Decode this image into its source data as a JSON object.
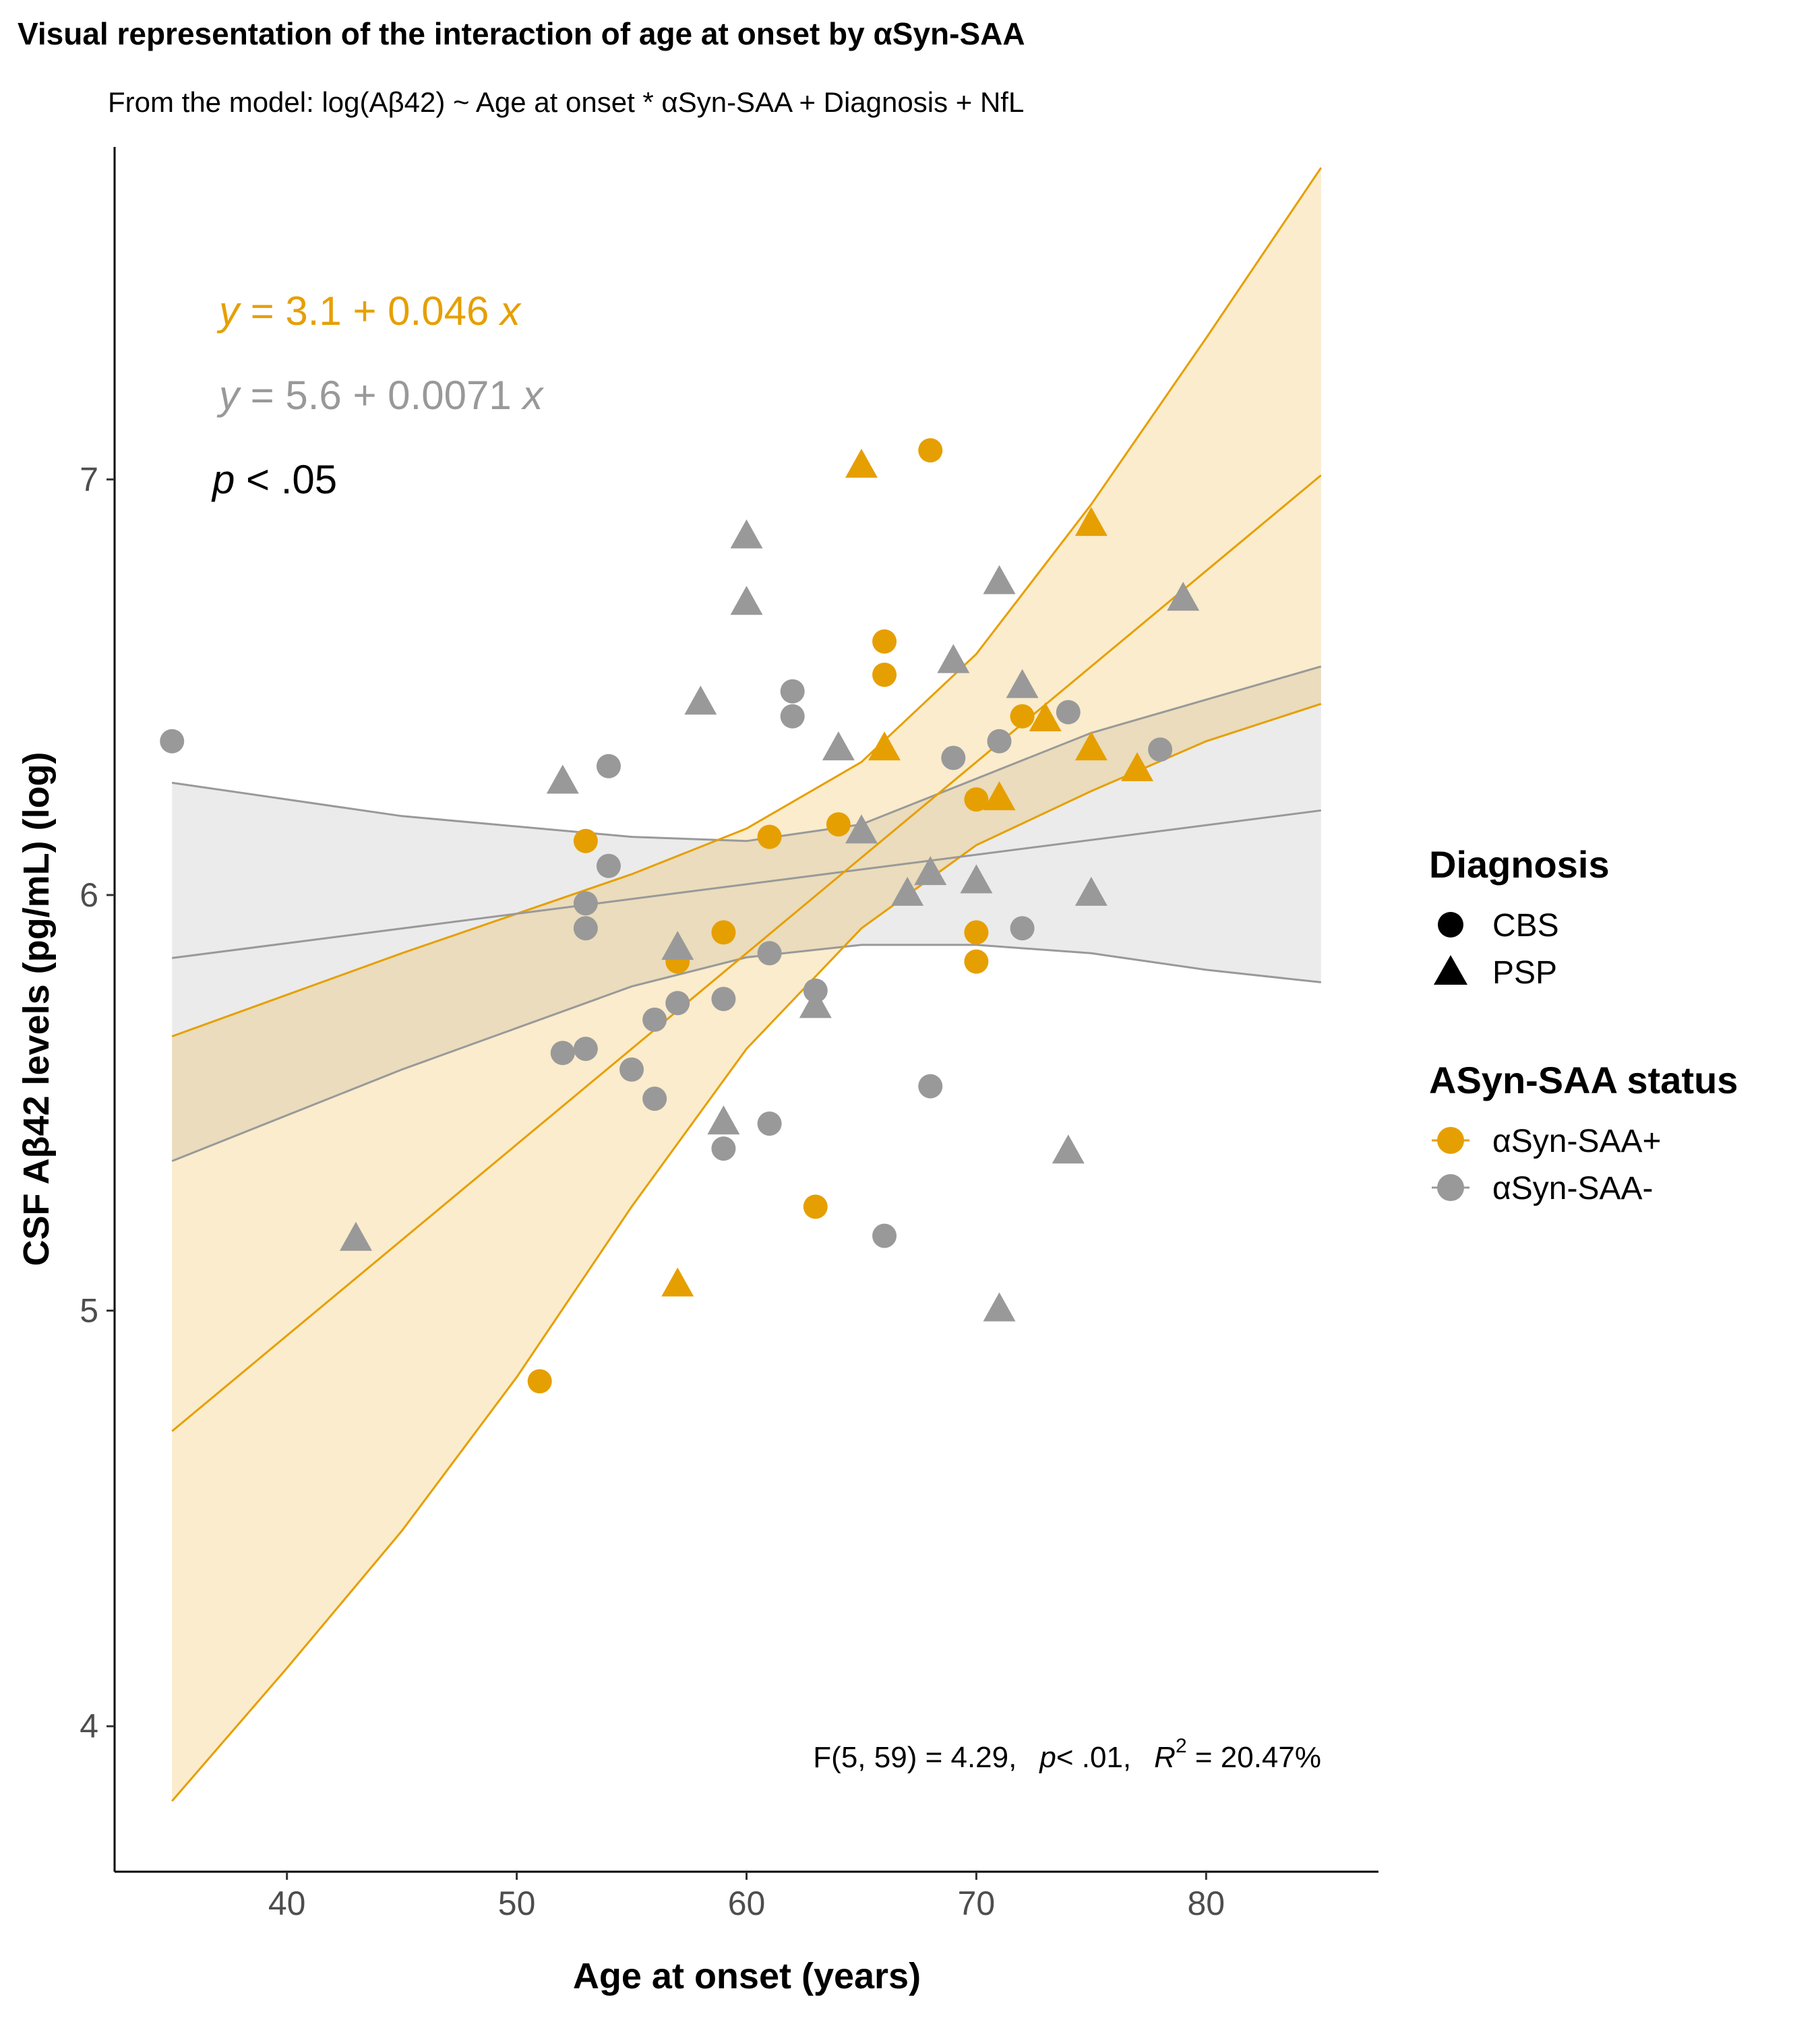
{
  "title": "Visual representation of the interaction of age at onset by αSyn-SAA",
  "subtitle": "From the model: log(Aβ42) ~ Age at onset * αSyn-SAA + Diagnosis + NfL",
  "annotations": {
    "eq_pos_y": "y",
    "eq_pos_rest": " = 3.1 + 0.046 ",
    "eq_pos_x": "x",
    "eq_neg_y": "y",
    "eq_neg_rest": " = 5.6 + 0.0071 ",
    "eq_neg_x": "x",
    "p_symbol": "p",
    "p_rest": " < .05",
    "stats_f": "F(5, 59) = 4.29,",
    "stats_p": "p",
    "stats_p_rest": "< .01,",
    "stats_r": "R",
    "stats_r_sup": "2",
    "stats_r_rest": " = 20.47%"
  },
  "legend": {
    "diagnosis_title": "Diagnosis",
    "diagnosis_items": [
      "CBS",
      "PSP"
    ],
    "status_title": "ASyn-SAA status",
    "status_items": [
      "αSyn-SAA+",
      "αSyn-SAA-"
    ]
  },
  "colors": {
    "positive": "#E69F00",
    "positive_band": "#FBEBCB",
    "negative": "#999999",
    "negative_band": "#EBEBEB",
    "overlap_band": "#E6DBC0",
    "axis": "#000000"
  },
  "chart_data": {
    "type": "scatter",
    "title": "Visual representation of the interaction of age at onset by αSyn-SAA",
    "xlabel": "Age at onset (years)",
    "ylabel": "CSF Aβ42 levels (pg/mL) (log)",
    "xlim": [
      32.5,
      87.5
    ],
    "ylim": [
      3.65,
      7.8
    ],
    "x_ticks": [
      40,
      50,
      60,
      70,
      80
    ],
    "y_ticks": [
      4,
      5,
      6,
      7
    ],
    "grid": false,
    "legend_position": "right",
    "fit_lines": [
      {
        "name": "αSyn-SAA+",
        "intercept": 3.1,
        "slope": 0.046,
        "x_range": [
          35,
          85
        ],
        "upper": [
          [
            35,
            5.66
          ],
          [
            45,
            5.86
          ],
          [
            55,
            6.05
          ],
          [
            60,
            6.16
          ],
          [
            65,
            6.32
          ],
          [
            70,
            6.58
          ],
          [
            75,
            6.94
          ],
          [
            80,
            7.34
          ],
          [
            85,
            7.75
          ]
        ],
        "lower": [
          [
            35,
            3.82
          ],
          [
            40,
            4.14
          ],
          [
            45,
            4.47
          ],
          [
            50,
            4.84
          ],
          [
            55,
            5.25
          ],
          [
            60,
            5.63
          ],
          [
            65,
            5.92
          ],
          [
            70,
            6.12
          ],
          [
            75,
            6.25
          ],
          [
            80,
            6.37
          ],
          [
            85,
            6.46
          ]
        ]
      },
      {
        "name": "αSyn-SAA-",
        "intercept": 5.6,
        "slope": 0.0071,
        "x_range": [
          35,
          85
        ],
        "upper": [
          [
            35,
            6.27
          ],
          [
            45,
            6.19
          ],
          [
            55,
            6.14
          ],
          [
            60,
            6.13
          ],
          [
            65,
            6.17
          ],
          [
            70,
            6.28
          ],
          [
            75,
            6.39
          ],
          [
            80,
            6.47
          ],
          [
            85,
            6.55
          ]
        ],
        "lower": [
          [
            35,
            5.36
          ],
          [
            45,
            5.58
          ],
          [
            55,
            5.78
          ],
          [
            60,
            5.85
          ],
          [
            65,
            5.88
          ],
          [
            70,
            5.88
          ],
          [
            75,
            5.86
          ],
          [
            80,
            5.82
          ],
          [
            85,
            5.79
          ]
        ]
      }
    ],
    "series": [
      {
        "name": "αSyn-SAA+ CBS",
        "status": "positive",
        "shape": "circle",
        "points": [
          [
            68,
            7.07
          ],
          [
            66,
            6.61
          ],
          [
            66,
            6.53
          ],
          [
            72,
            6.43
          ],
          [
            64,
            6.17
          ],
          [
            70,
            6.23
          ],
          [
            53,
            6.13
          ],
          [
            61,
            6.14
          ],
          [
            59,
            5.91
          ],
          [
            70,
            5.91
          ],
          [
            70,
            5.84
          ],
          [
            57,
            5.84
          ],
          [
            63,
            5.25
          ],
          [
            51,
            4.83
          ]
        ]
      },
      {
        "name": "αSyn-SAA+ PSP",
        "status": "positive",
        "shape": "triangle",
        "points": [
          [
            65,
            7.03
          ],
          [
            75,
            6.89
          ],
          [
            66,
            6.35
          ],
          [
            73,
            6.42
          ],
          [
            75,
            6.35
          ],
          [
            77,
            6.3
          ],
          [
            71,
            6.23
          ],
          [
            57,
            5.06
          ]
        ]
      },
      {
        "name": "αSyn-SAA- CBS",
        "status": "negative",
        "shape": "circle",
        "points": [
          [
            35,
            6.37
          ],
          [
            54,
            6.31
          ],
          [
            62,
            6.49
          ],
          [
            62,
            6.43
          ],
          [
            69,
            6.33
          ],
          [
            71,
            6.37
          ],
          [
            74,
            6.44
          ],
          [
            78,
            6.35
          ],
          [
            54,
            6.07
          ],
          [
            53,
            5.98
          ],
          [
            53,
            5.92
          ],
          [
            61,
            5.86
          ],
          [
            72,
            5.92
          ],
          [
            63,
            5.77
          ],
          [
            59,
            5.75
          ],
          [
            57,
            5.74
          ],
          [
            56,
            5.7
          ],
          [
            52,
            5.62
          ],
          [
            53,
            5.63
          ],
          [
            55,
            5.58
          ],
          [
            56,
            5.51
          ],
          [
            68,
            5.54
          ],
          [
            61,
            5.45
          ],
          [
            59,
            5.39
          ],
          [
            66,
            5.18
          ]
        ]
      },
      {
        "name": "αSyn-SAA- PSP",
        "status": "negative",
        "shape": "triangle",
        "points": [
          [
            60,
            6.86
          ],
          [
            60,
            6.7
          ],
          [
            71,
            6.75
          ],
          [
            79,
            6.71
          ],
          [
            69,
            6.56
          ],
          [
            72,
            6.5
          ],
          [
            58,
            6.46
          ],
          [
            64,
            6.35
          ],
          [
            52,
            6.27
          ],
          [
            65,
            6.15
          ],
          [
            68,
            6.05
          ],
          [
            70,
            6.03
          ],
          [
            67,
            6.0
          ],
          [
            75,
            6.0
          ],
          [
            57,
            5.87
          ],
          [
            63,
            5.73
          ],
          [
            59,
            5.45
          ],
          [
            74,
            5.38
          ],
          [
            43,
            5.17
          ],
          [
            71,
            5.0
          ]
        ]
      }
    ]
  }
}
